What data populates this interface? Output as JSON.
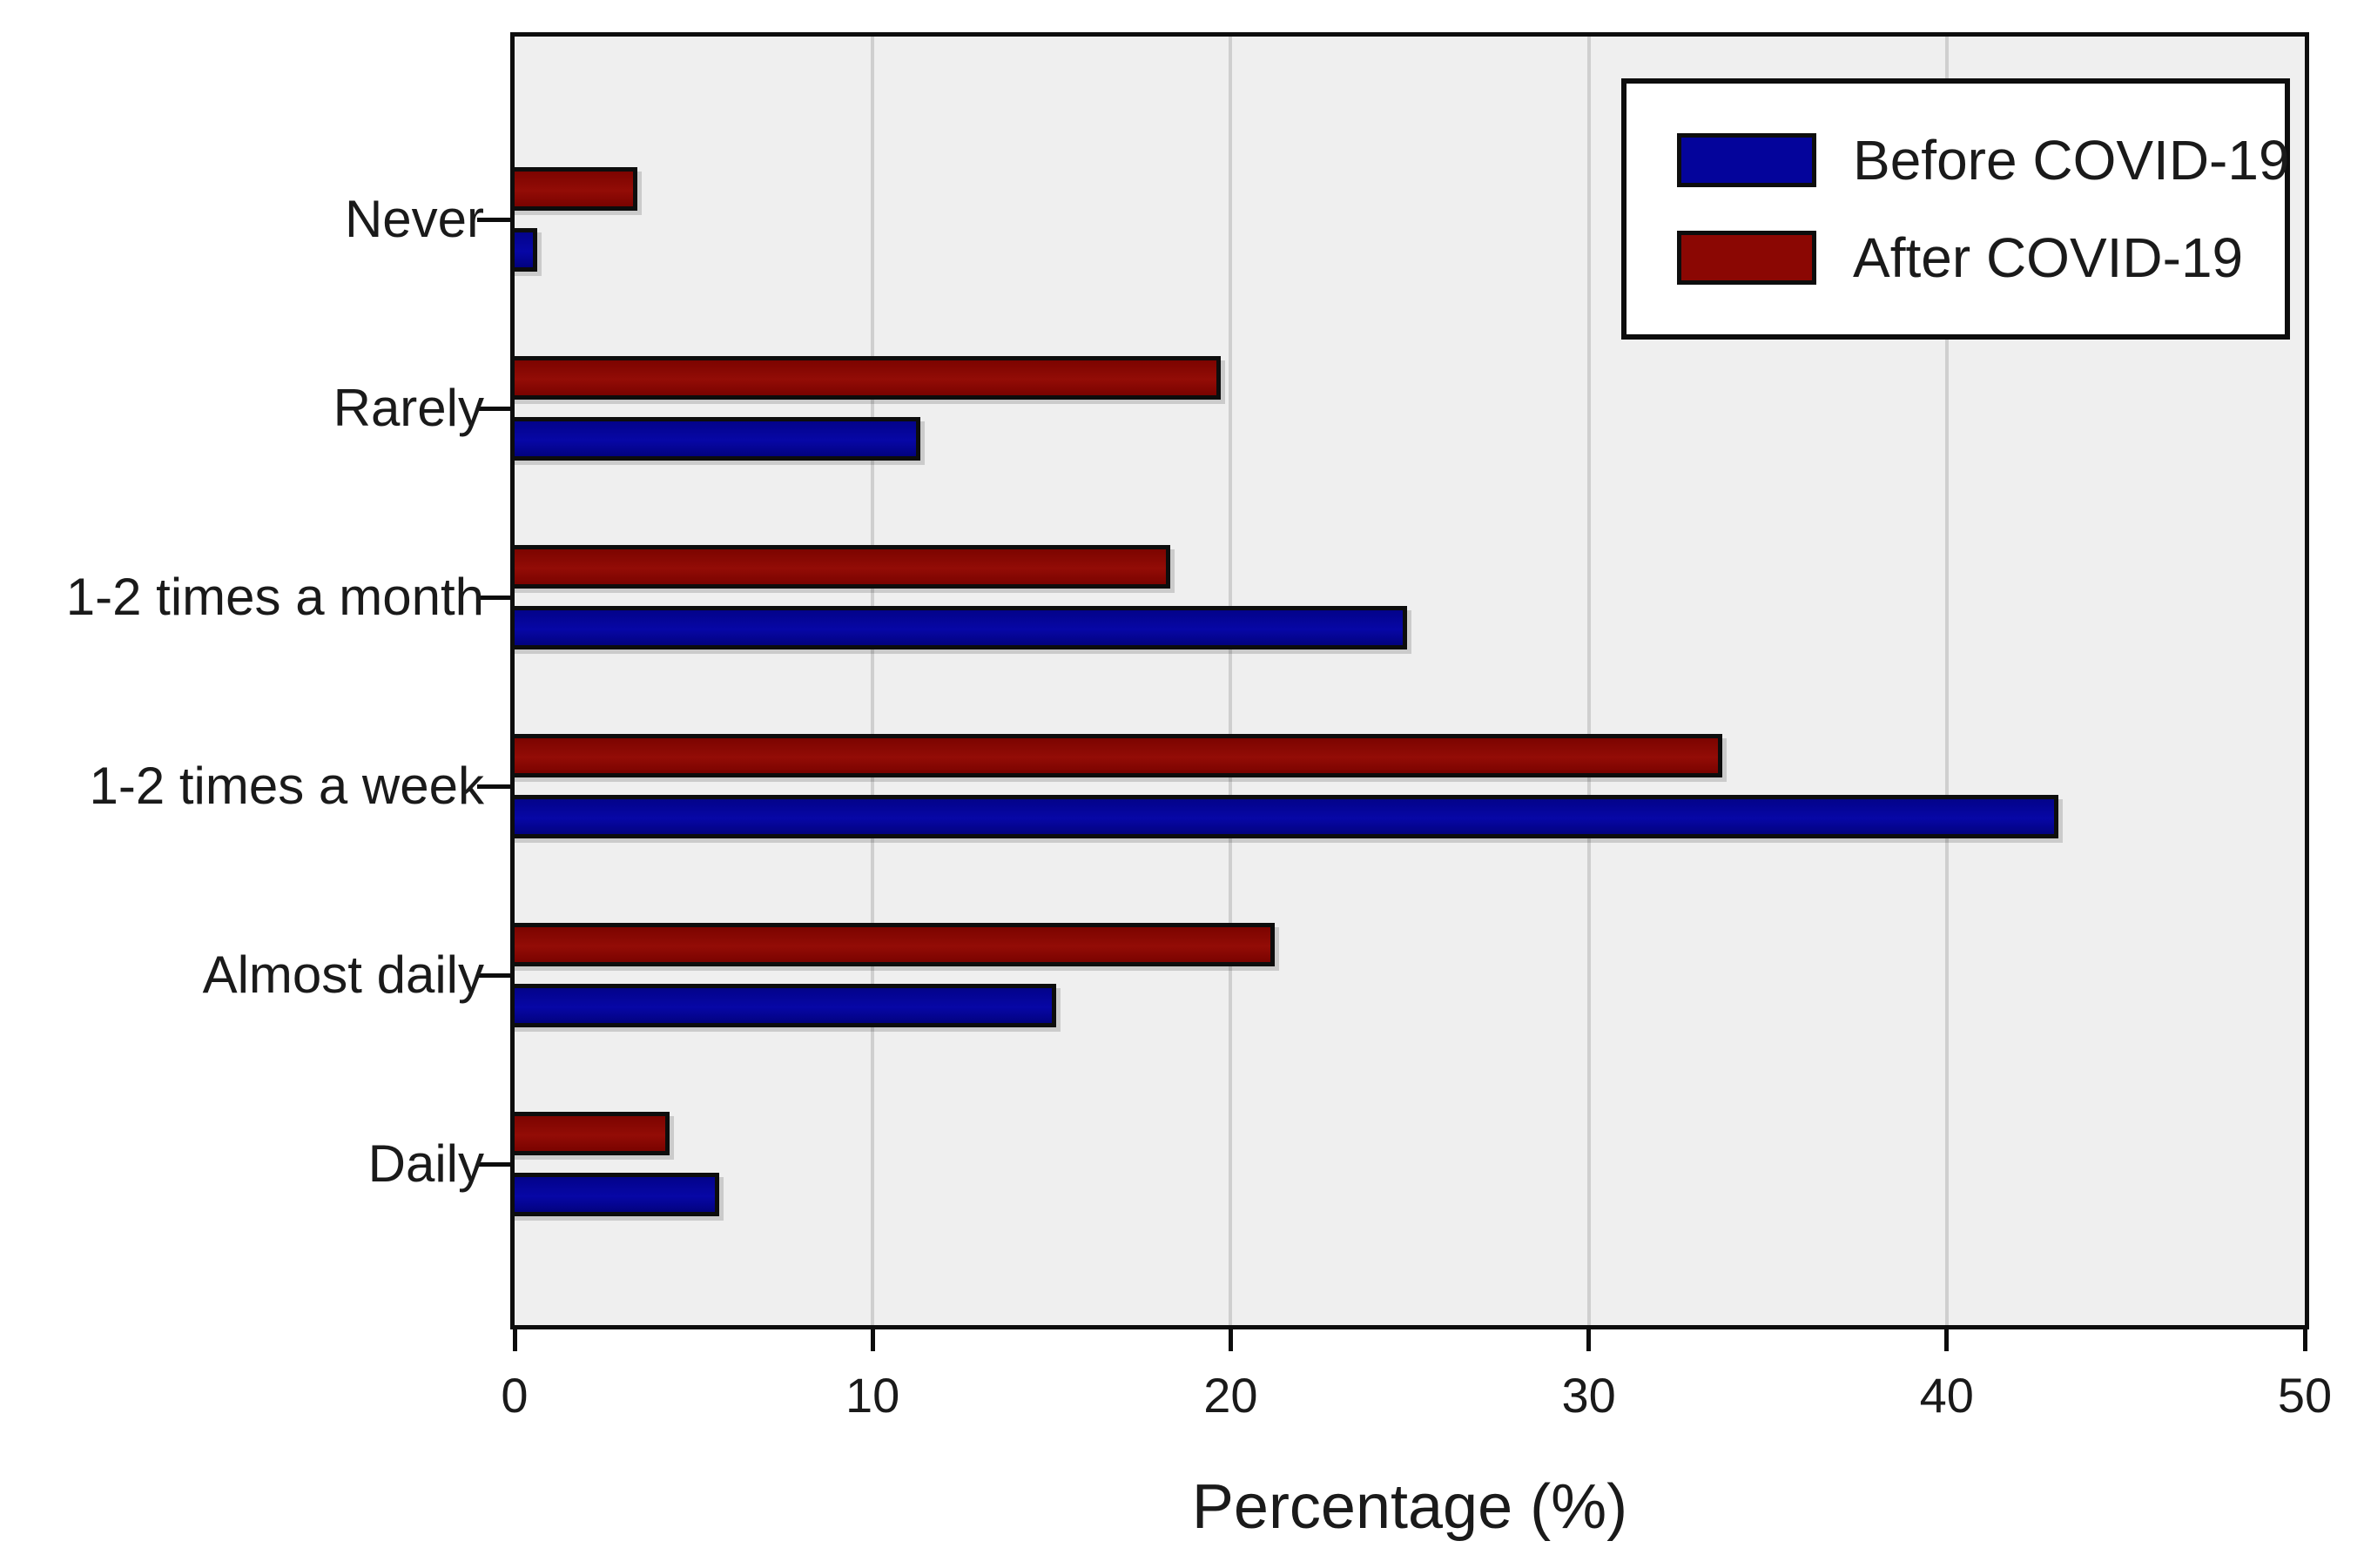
{
  "chart_data": {
    "type": "bar",
    "orientation": "horizontal",
    "title": "",
    "xlabel": "Percentage (%)",
    "ylabel": "",
    "xlim": [
      0,
      50
    ],
    "xticks": [
      0,
      10,
      20,
      30,
      40,
      50
    ],
    "categories_top_to_bottom": [
      "Never",
      "Rarely",
      "1-2 times a month",
      "1-2 times a week",
      "Almost daily",
      "Daily"
    ],
    "series": [
      {
        "name": "Before COVID-19",
        "color": "#04049b",
        "values": [
          0.5,
          11.2,
          24.8,
          43.0,
          15.0,
          5.6
        ]
      },
      {
        "name": "After COVID-19",
        "color": "#8b0703",
        "values": [
          3.3,
          19.6,
          18.2,
          33.6,
          21.1,
          4.2
        ]
      }
    ],
    "legend_position": "top-right",
    "grid": "vertical-gridlines",
    "colors": {
      "plot_background": "#efefef",
      "page_background": "#ffffff",
      "gridline": "#cfcfcf",
      "frame_and_bar_border": "#0d0d0d",
      "text": "#1a1a1a"
    },
    "bar_arrangement": "per category: After COVID-19 (red) bar above, Before COVID-19 (blue) bar below"
  }
}
